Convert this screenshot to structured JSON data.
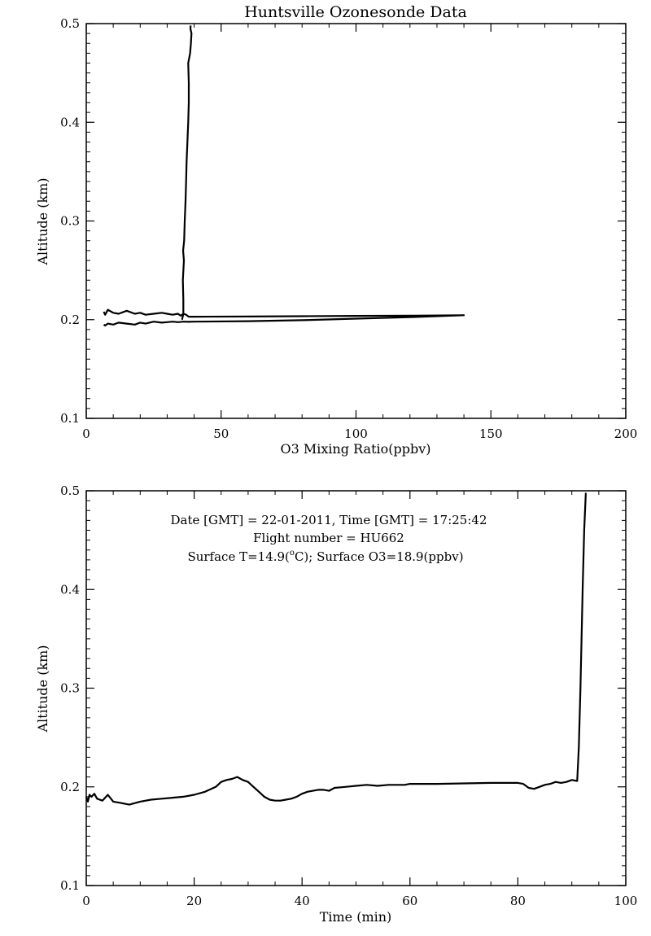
{
  "chart_data": [
    {
      "type": "line",
      "title": "Huntsville Ozonesonde Data",
      "xlabel": "O3 Mixing Ratio(ppbv)",
      "ylabel": "Altitude (km)",
      "xlim": [
        0,
        200
      ],
      "ylim": [
        0.1,
        0.5
      ],
      "x_ticks": [
        "0",
        "50",
        "100",
        "150",
        "200"
      ],
      "y_ticks": [
        "0.1",
        "0.2",
        "0.3",
        "0.4",
        "0.5"
      ],
      "series": [
        {
          "x": [
            6.5,
            7,
            8,
            10,
            12,
            15,
            18,
            20,
            22,
            25,
            28,
            30,
            32,
            34,
            35,
            36,
            37,
            37.5,
            38,
            39,
            40,
            60,
            80,
            100,
            120,
            140,
            120,
            100,
            80,
            60,
            40,
            38,
            36,
            34,
            32,
            30,
            28,
            25,
            22,
            20,
            18,
            15,
            12,
            10,
            8,
            7,
            6.5
          ],
          "y": [
            0.208,
            0.205,
            0.21,
            0.207,
            0.206,
            0.209,
            0.206,
            0.207,
            0.205,
            0.206,
            0.207,
            0.206,
            0.205,
            0.206,
            0.204,
            0.206,
            0.205,
            0.204,
            0.203,
            0.203,
            0.203,
            0.2032,
            0.2035,
            0.2038,
            0.204,
            0.2045,
            0.2025,
            0.201,
            0.1995,
            0.1985,
            0.198,
            0.1978,
            0.198,
            0.1975,
            0.198,
            0.1975,
            0.197,
            0.198,
            0.196,
            0.197,
            0.195,
            0.196,
            0.197,
            0.195,
            0.196,
            0.194,
            0.195
          ]
        },
        {
          "x": [
            35.5,
            36,
            36,
            35.8,
            36.2,
            35.9,
            36.3,
            36.5,
            36.8,
            37,
            37.2,
            37.5,
            37.8,
            38,
            38,
            37.8,
            38.5,
            38.8,
            39,
            38.6,
            38.7
          ],
          "y": [
            0.2,
            0.206,
            0.22,
            0.24,
            0.26,
            0.27,
            0.28,
            0.3,
            0.32,
            0.34,
            0.36,
            0.38,
            0.4,
            0.42,
            0.44,
            0.46,
            0.47,
            0.48,
            0.49,
            0.495,
            0.498
          ]
        }
      ]
    },
    {
      "type": "line",
      "xlabel": "Time (min)",
      "ylabel": "Altitude (km)",
      "xlim": [
        0,
        100
      ],
      "ylim": [
        0.1,
        0.5
      ],
      "x_ticks": [
        "0",
        "20",
        "40",
        "60",
        "80",
        "100"
      ],
      "y_ticks": [
        "0.1",
        "0.2",
        "0.3",
        "0.4",
        "0.5"
      ],
      "annotations": {
        "line1": "Date [GMT] = 22-01-2011,  Time [GMT] = 17:25:42",
        "line2": "Flight number = HU662",
        "line3_prefix": "Surface T=14.9(",
        "line3_super": "o",
        "line3_suffix": "C); Surface O3=18.9(ppbv)"
      },
      "series": [
        {
          "x": [
            0,
            0.3,
            0.6,
            1,
            1.5,
            2,
            3,
            4,
            5,
            6,
            8,
            10,
            12,
            14,
            16,
            18,
            20,
            22,
            24,
            25,
            26,
            27,
            28,
            29,
            30,
            31,
            32,
            33,
            34,
            35,
            36,
            37,
            38,
            39,
            40,
            41,
            42,
            43,
            44,
            45,
            46,
            48,
            50,
            52,
            54,
            56,
            58,
            59,
            60,
            65,
            70,
            75,
            80,
            81,
            82,
            83,
            84,
            85,
            86,
            87,
            88,
            89,
            90,
            91,
            91.3,
            91.6,
            92,
            92.3,
            92.6
          ],
          "y": [
            0.19,
            0.185,
            0.192,
            0.19,
            0.193,
            0.188,
            0.186,
            0.192,
            0.185,
            0.184,
            0.182,
            0.185,
            0.187,
            0.188,
            0.189,
            0.19,
            0.192,
            0.195,
            0.2,
            0.205,
            0.207,
            0.208,
            0.21,
            0.207,
            0.205,
            0.2,
            0.195,
            0.19,
            0.187,
            0.186,
            0.186,
            0.187,
            0.188,
            0.19,
            0.193,
            0.195,
            0.196,
            0.197,
            0.197,
            0.196,
            0.199,
            0.2,
            0.201,
            0.202,
            0.201,
            0.202,
            0.202,
            0.202,
            0.203,
            0.203,
            0.2035,
            0.204,
            0.204,
            0.203,
            0.199,
            0.198,
            0.2,
            0.202,
            0.203,
            0.205,
            0.204,
            0.205,
            0.207,
            0.206,
            0.24,
            0.3,
            0.4,
            0.46,
            0.498
          ]
        }
      ]
    }
  ]
}
